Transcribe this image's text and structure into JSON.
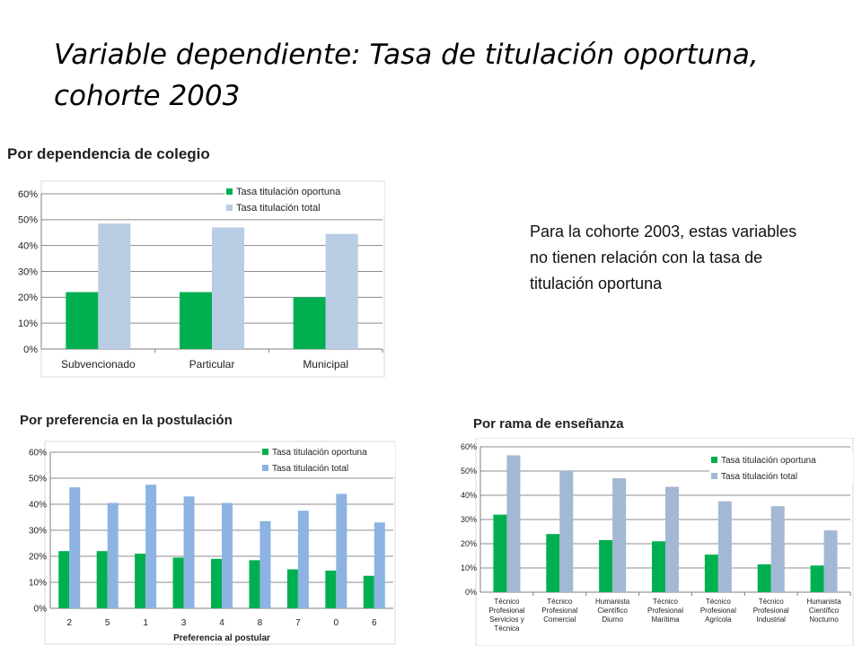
{
  "slide": {
    "title": "Variable dependiente: Tasa de titulación oportuna, cohorte 2003",
    "note": "Para la cohorte 2003, estas variables no tienen relación con la tasa de titulación oportuna"
  },
  "sections": {
    "dependencia": "Por dependencia de colegio",
    "preferencia": "Por preferencia en la postulación",
    "rama": "Por rama de enseñanza"
  },
  "chart_data": [
    {
      "id": "dependencia",
      "type": "bar",
      "title": "",
      "xlabel": "",
      "ylabel": "",
      "ylim": [
        0,
        0.6
      ],
      "ytick_labels": [
        "0%",
        "10%",
        "20%",
        "30%",
        "40%",
        "50%",
        "60%"
      ],
      "grid": true,
      "legend": "top-right",
      "categories": [
        "Subvencionado",
        "Particular",
        "Municipal"
      ],
      "series": [
        {
          "name": "Tasa titulación oportuna",
          "values": [
            0.22,
            0.22,
            0.2
          ],
          "color": "#00b050"
        },
        {
          "name": "Tasa titulación total",
          "values": [
            0.485,
            0.47,
            0.445
          ],
          "color": "#b9cde5"
        }
      ]
    },
    {
      "id": "preferencia",
      "type": "bar",
      "title": "",
      "xlabel": "Preferencia al postular",
      "ylabel": "",
      "ylim": [
        0,
        0.6
      ],
      "ytick_labels": [
        "0%",
        "10%",
        "20%",
        "30%",
        "40%",
        "50%",
        "60%"
      ],
      "grid": true,
      "legend": "top-right",
      "categories": [
        "2",
        "5",
        "1",
        "3",
        "4",
        "8",
        "7",
        "0",
        "6"
      ],
      "series": [
        {
          "name": "Tasa titulación oportuna",
          "values": [
            0.22,
            0.22,
            0.21,
            0.195,
            0.19,
            0.185,
            0.15,
            0.145,
            0.125
          ],
          "color": "#00b050"
        },
        {
          "name": "Tasa titulación total",
          "values": [
            0.465,
            0.405,
            0.475,
            0.43,
            0.405,
            0.335,
            0.375,
            0.44,
            0.33
          ],
          "color": "#8db3e2"
        }
      ]
    },
    {
      "id": "rama",
      "type": "bar",
      "title": "",
      "xlabel": "",
      "ylabel": "",
      "ylim": [
        0,
        0.6
      ],
      "ytick_labels": [
        "0%",
        "10%",
        "20%",
        "30%",
        "40%",
        "50%",
        "60%"
      ],
      "grid": true,
      "legend": "top-right",
      "categories": [
        [
          "Técnico",
          "Profesional",
          "Servicios y",
          "Técnica"
        ],
        [
          "Técnico",
          "Profesional",
          "Comercial"
        ],
        [
          "Humanista",
          "Científico",
          "Diurno"
        ],
        [
          "Técnico",
          "Profesional",
          "Marítima"
        ],
        [
          "Técnico",
          "Profesional",
          "Agrícola"
        ],
        [
          "Técnico",
          "Profesional",
          "Industrial"
        ],
        [
          "Humanista",
          "Científico",
          "Nocturno"
        ]
      ],
      "series": [
        {
          "name": "Tasa titulación oportuna",
          "values": [
            0.32,
            0.24,
            0.215,
            0.21,
            0.155,
            0.115,
            0.11
          ],
          "color": "#00b050"
        },
        {
          "name": "Tasa titulación total",
          "values": [
            0.565,
            0.5,
            0.47,
            0.435,
            0.375,
            0.355,
            0.255
          ],
          "color": "#a3b8d4"
        }
      ]
    }
  ]
}
